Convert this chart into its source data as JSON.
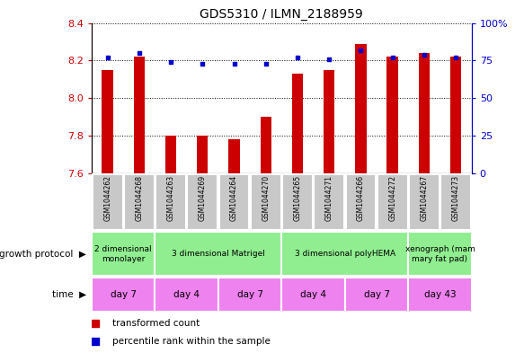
{
  "title": "GDS5310 / ILMN_2188959",
  "samples": [
    "GSM1044262",
    "GSM1044268",
    "GSM1044263",
    "GSM1044269",
    "GSM1044264",
    "GSM1044270",
    "GSM1044265",
    "GSM1044271",
    "GSM1044266",
    "GSM1044272",
    "GSM1044267",
    "GSM1044273"
  ],
  "bar_values": [
    8.15,
    8.22,
    7.8,
    7.8,
    7.78,
    7.9,
    8.13,
    8.15,
    8.29,
    8.22,
    8.24,
    8.22
  ],
  "dot_values": [
    77,
    80,
    74,
    73,
    73,
    73,
    77,
    76,
    82,
    77,
    79,
    77
  ],
  "ylim_left": [
    7.6,
    8.4
  ],
  "ylim_right": [
    0,
    100
  ],
  "yticks_left": [
    7.6,
    7.8,
    8.0,
    8.2,
    8.4
  ],
  "yticks_right": [
    0,
    25,
    50,
    75,
    100
  ],
  "bar_color": "#cc0000",
  "dot_color": "#0000cc",
  "bar_bottom": 7.6,
  "bar_width": 0.35,
  "growth_protocol_groups": [
    {
      "label": "2 dimensional\nmonolayer",
      "start": 0,
      "end": 2,
      "color": "#90EE90"
    },
    {
      "label": "3 dimensional Matrigel",
      "start": 2,
      "end": 6,
      "color": "#90EE90"
    },
    {
      "label": "3 dimensional polyHEMA",
      "start": 6,
      "end": 10,
      "color": "#90EE90"
    },
    {
      "label": "xenograph (mam\nmary fat pad)",
      "start": 10,
      "end": 12,
      "color": "#90EE90"
    }
  ],
  "time_groups": [
    {
      "label": "day 7",
      "start": 0,
      "end": 2,
      "color": "#ee82ee"
    },
    {
      "label": "day 4",
      "start": 2,
      "end": 4,
      "color": "#ee82ee"
    },
    {
      "label": "day 7",
      "start": 4,
      "end": 6,
      "color": "#ee82ee"
    },
    {
      "label": "day 4",
      "start": 6,
      "end": 8,
      "color": "#ee82ee"
    },
    {
      "label": "day 7",
      "start": 8,
      "end": 10,
      "color": "#ee82ee"
    },
    {
      "label": "day 43",
      "start": 10,
      "end": 12,
      "color": "#ee82ee"
    }
  ],
  "growth_label": "growth protocol",
  "time_label": "time",
  "legend_bar_label": "transformed count",
  "legend_dot_label": "percentile rank within the sample",
  "plot_bg_color": "#ffffff",
  "axis_color_left": "#cc0000",
  "axis_color_right": "#0000cc",
  "gray_box_color": "#c8c8c8",
  "grid_color": "#000000",
  "n_samples": 12
}
